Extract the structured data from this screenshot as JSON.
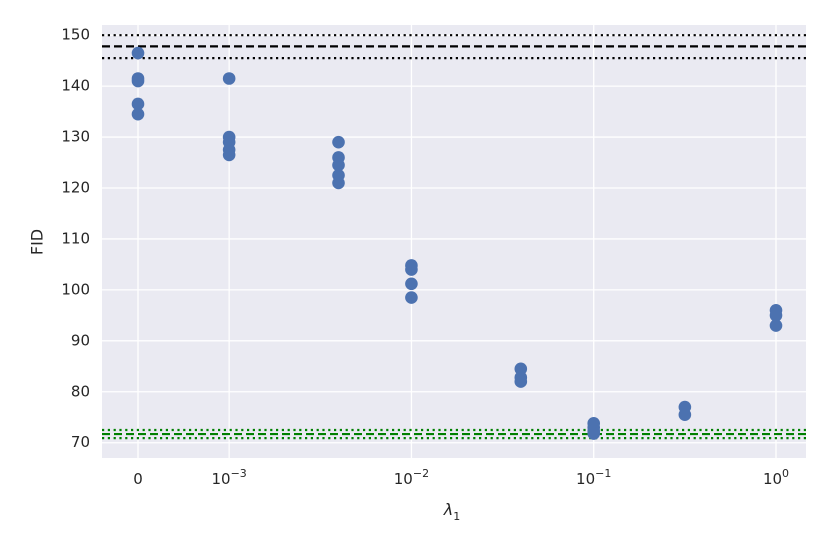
{
  "chart_data": {
    "type": "scatter",
    "title": "",
    "xlabel": "λ",
    "xlabel_sub": "1",
    "ylabel": "FID",
    "ylim": [
      67,
      152
    ],
    "grid": true,
    "background": "#eaeaf2",
    "marker_color": "#4c72b0",
    "x_ticks": [
      {
        "pos": 0,
        "base": "0",
        "exp": ""
      },
      {
        "pos": 1,
        "base": "10",
        "exp": "−3"
      },
      {
        "pos": 3,
        "base": "10",
        "exp": "−2"
      },
      {
        "pos": 5,
        "base": "10",
        "exp": "−1"
      },
      {
        "pos": 7,
        "base": "10",
        "exp": "0"
      }
    ],
    "y_ticks": [
      70,
      80,
      90,
      100,
      110,
      120,
      130,
      140,
      150
    ],
    "points": [
      {
        "x": 0,
        "y": 146.5
      },
      {
        "x": 0,
        "y": 141.5
      },
      {
        "x": 0,
        "y": 141.0
      },
      {
        "x": 0,
        "y": 136.5
      },
      {
        "x": 0,
        "y": 134.5
      },
      {
        "x": 1,
        "y": 141.5
      },
      {
        "x": 1,
        "y": 130.0
      },
      {
        "x": 1,
        "y": 129.0
      },
      {
        "x": 1,
        "y": 127.5
      },
      {
        "x": 1,
        "y": 126.5
      },
      {
        "x": 2.2,
        "y": 129.0
      },
      {
        "x": 2.2,
        "y": 126.0
      },
      {
        "x": 2.2,
        "y": 124.5
      },
      {
        "x": 2.2,
        "y": 122.5
      },
      {
        "x": 2.2,
        "y": 121.0
      },
      {
        "x": 3,
        "y": 104.8
      },
      {
        "x": 3,
        "y": 104.0
      },
      {
        "x": 3,
        "y": 101.2
      },
      {
        "x": 3,
        "y": 98.5
      },
      {
        "x": 4.2,
        "y": 84.5
      },
      {
        "x": 4.2,
        "y": 82.8
      },
      {
        "x": 4.2,
        "y": 82.0
      },
      {
        "x": 5,
        "y": 73.8
      },
      {
        "x": 5,
        "y": 73.0
      },
      {
        "x": 5,
        "y": 72.3
      },
      {
        "x": 5,
        "y": 71.8
      },
      {
        "x": 6,
        "y": 77.0
      },
      {
        "x": 6,
        "y": 75.5
      },
      {
        "x": 7,
        "y": 96.0
      },
      {
        "x": 7,
        "y": 95.0
      },
      {
        "x": 7,
        "y": 93.0
      }
    ],
    "reference_lines": [
      {
        "y": 150.0,
        "style": "dotted",
        "color": "#000000"
      },
      {
        "y": 147.8,
        "style": "dashed",
        "color": "#000000"
      },
      {
        "y": 145.5,
        "style": "dotted",
        "color": "#000000"
      },
      {
        "y": 72.5,
        "style": "dotted",
        "color": "#008000"
      },
      {
        "y": 71.7,
        "style": "dashed",
        "color": "#008000"
      },
      {
        "y": 70.9,
        "style": "dotted",
        "color": "#008000"
      }
    ]
  }
}
